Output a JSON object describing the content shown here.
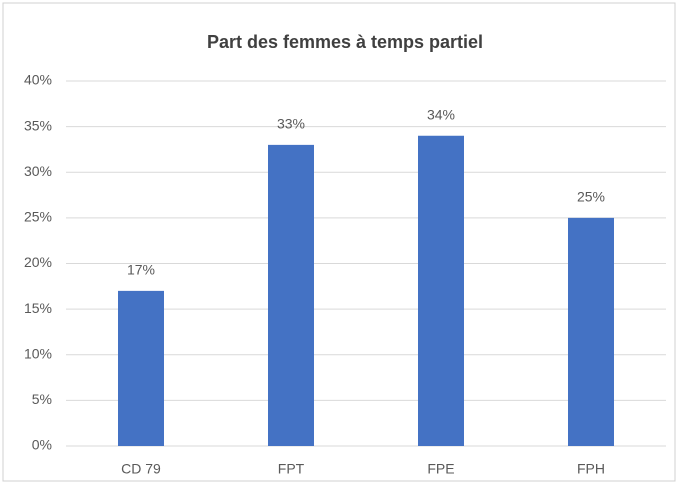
{
  "chart_data": {
    "type": "bar",
    "title": "Part des femmes à temps partiel",
    "categories": [
      "CD 79",
      "FPT",
      "FPE",
      "FPH"
    ],
    "values": [
      17,
      33,
      34,
      25
    ],
    "value_labels": [
      "17%",
      "33%",
      "34%",
      "25%"
    ],
    "color": "#4472c4",
    "ylim": [
      0,
      40
    ],
    "yticks": [
      {
        "value": 0,
        "label": "0%"
      },
      {
        "value": 5,
        "label": "5%"
      },
      {
        "value": 10,
        "label": "10%"
      },
      {
        "value": 15,
        "label": "15%"
      },
      {
        "value": 20,
        "label": "20%"
      },
      {
        "value": 25,
        "label": "25%"
      },
      {
        "value": 30,
        "label": "30%"
      },
      {
        "value": 35,
        "label": "35%"
      },
      {
        "value": 40,
        "label": "40%"
      }
    ],
    "grid": true
  }
}
